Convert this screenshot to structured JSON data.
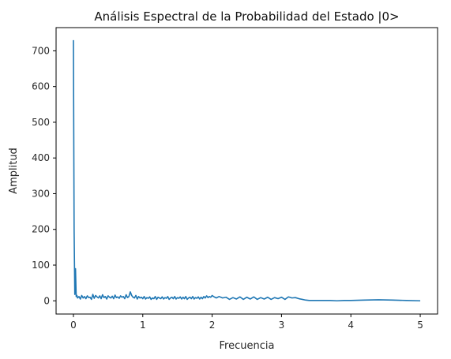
{
  "chart_data": {
    "type": "line",
    "title": "Análisis Espectral de la Probabilidad del Estado |0>",
    "xlabel": "Frecuencia",
    "ylabel": "Amplitud",
    "xlim": [
      -0.25,
      5.25
    ],
    "ylim": [
      -37,
      765
    ],
    "xticks": [
      0,
      1,
      2,
      3,
      4,
      5
    ],
    "yticks": [
      0,
      100,
      200,
      300,
      400,
      500,
      600,
      700
    ],
    "grid": false,
    "legend": "none",
    "line_color": "#1f77b4",
    "series": [
      {
        "x": [
          0.0,
          0.01,
          0.02,
          0.03,
          0.04,
          0.05,
          0.06,
          0.08,
          0.1,
          0.12,
          0.14,
          0.16,
          0.18,
          0.2,
          0.22,
          0.24,
          0.26,
          0.28,
          0.3,
          0.32,
          0.34,
          0.36,
          0.38,
          0.4,
          0.42,
          0.44,
          0.46,
          0.48,
          0.5,
          0.52,
          0.54,
          0.56,
          0.58,
          0.6,
          0.62,
          0.64,
          0.66,
          0.68,
          0.7,
          0.72,
          0.74,
          0.76,
          0.78,
          0.8,
          0.82,
          0.84,
          0.86,
          0.88,
          0.9,
          0.92,
          0.94,
          0.96,
          0.98,
          1.0,
          1.02,
          1.04,
          1.06,
          1.08,
          1.1,
          1.12,
          1.14,
          1.16,
          1.18,
          1.2,
          1.22,
          1.24,
          1.26,
          1.28,
          1.3,
          1.32,
          1.34,
          1.36,
          1.38,
          1.4,
          1.42,
          1.44,
          1.46,
          1.48,
          1.5,
          1.52,
          1.54,
          1.56,
          1.58,
          1.6,
          1.62,
          1.64,
          1.66,
          1.68,
          1.7,
          1.72,
          1.74,
          1.76,
          1.78,
          1.8,
          1.82,
          1.84,
          1.86,
          1.88,
          1.9,
          1.92,
          1.94,
          1.96,
          1.98,
          2.0,
          2.02,
          2.04,
          2.06,
          2.1,
          2.15,
          2.2,
          2.25,
          2.3,
          2.35,
          2.4,
          2.45,
          2.5,
          2.55,
          2.6,
          2.65,
          2.7,
          2.75,
          2.8,
          2.85,
          2.9,
          2.95,
          3.0,
          3.05,
          3.1,
          3.15,
          3.2,
          3.25,
          3.3,
          3.35,
          3.4,
          3.5,
          3.6,
          3.7,
          3.8,
          3.9,
          4.0,
          4.2,
          4.4,
          4.6,
          4.8,
          5.0
        ],
        "values": [
          730,
          200,
          18,
          90,
          12,
          15,
          8,
          12,
          5,
          15,
          8,
          12,
          6,
          14,
          9,
          10,
          4,
          18,
          7,
          15,
          11,
          8,
          14,
          6,
          17,
          9,
          12,
          5,
          14,
          10,
          8,
          13,
          6,
          16,
          9,
          11,
          7,
          14,
          10,
          12,
          6,
          17,
          9,
          12,
          25,
          15,
          10,
          8,
          15,
          5,
          12,
          8,
          10,
          6,
          12,
          5,
          9,
          7,
          11,
          4,
          8,
          6,
          12,
          4,
          10,
          8,
          6,
          11,
          5,
          9,
          7,
          12,
          4,
          8,
          10,
          6,
          12,
          5,
          9,
          7,
          11,
          5,
          10,
          6,
          12,
          4,
          8,
          10,
          6,
          12,
          5,
          9,
          7,
          11,
          5,
          10,
          6,
          12,
          8,
          14,
          9,
          12,
          10,
          15,
          12,
          10,
          8,
          12,
          8,
          10,
          4,
          9,
          5,
          11,
          4,
          10,
          5,
          11,
          4,
          9,
          5,
          10,
          4,
          9,
          6,
          10,
          4,
          11,
          8,
          9,
          6,
          4,
          2,
          1,
          1,
          1,
          1,
          0,
          1,
          1,
          2,
          3,
          2,
          1,
          0
        ]
      }
    ]
  }
}
